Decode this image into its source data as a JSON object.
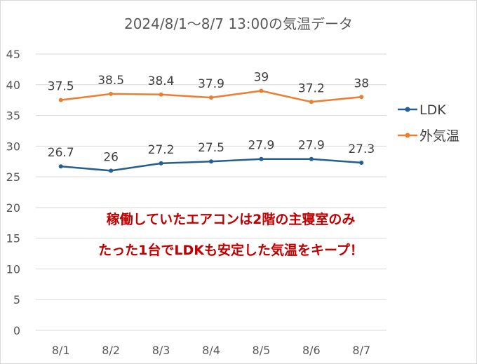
{
  "chart_data": {
    "type": "line",
    "title": "2024/8/1〜8/7 13:00の気温データ",
    "categories": [
      "8/1",
      "8/2",
      "8/3",
      "8/4",
      "8/5",
      "8/6",
      "8/7"
    ],
    "series": [
      {
        "name": "LDK",
        "values": [
          26.7,
          26,
          27.2,
          27.5,
          27.9,
          27.9,
          27.3
        ],
        "color": "#255e91"
      },
      {
        "name": "外気温",
        "values": [
          37.5,
          38.5,
          38.4,
          37.9,
          39,
          37.2,
          38
        ],
        "color": "#ed7d31"
      }
    ],
    "ylim": [
      0,
      45
    ],
    "yticks": [
      0,
      5,
      10,
      15,
      20,
      25,
      30,
      35,
      40,
      45
    ],
    "grid": true,
    "legend": "right",
    "data_labels": true,
    "annotations": [
      "稼働していたエアコンは2階の主寝室のみ",
      "たった1台でLDKも安定した気温をキープ！"
    ],
    "annotation_color": "#c00000"
  }
}
